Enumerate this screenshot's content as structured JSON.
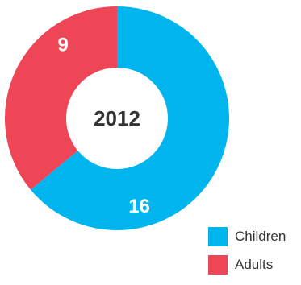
{
  "chart_data": {
    "type": "pie",
    "variant": "donut",
    "center_label": "2012",
    "slices": [
      {
        "label": "Children",
        "value": 16,
        "color": "#00b5ee"
      },
      {
        "label": "Adults",
        "value": 9,
        "color": "#ee4557"
      }
    ],
    "legend_position": "bottom-right"
  }
}
